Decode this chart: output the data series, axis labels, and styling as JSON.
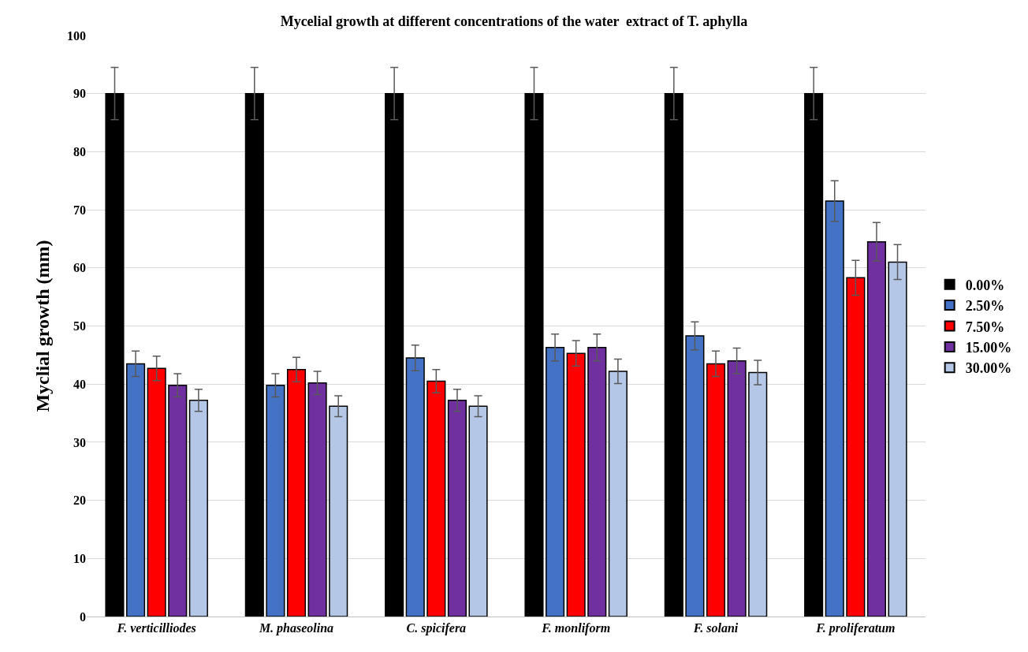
{
  "chart_data": {
    "type": "bar",
    "title": "Mycelial growth at different concentrations of the water  extract of T. aphylla",
    "ylabel": "Myclial growth (mm)",
    "categories": [
      "F. verticilliodes",
      "M. phaseolina",
      "C. spicifera",
      "F. monliform",
      "F. solani",
      "F. proliferatum"
    ],
    "series": [
      {
        "name": "0.00%",
        "color": "#000000",
        "values": [
          90,
          90,
          90,
          90,
          90,
          90
        ],
        "errors": [
          4.5,
          4.5,
          4.5,
          4.5,
          4.5,
          4.5
        ]
      },
      {
        "name": "2.50%",
        "color": "#4472c4",
        "values": [
          43.5,
          39.8,
          44.5,
          46.3,
          48.3,
          71.5
        ],
        "errors": [
          2.2,
          2,
          2.2,
          2.3,
          2.4,
          3.5
        ]
      },
      {
        "name": "7.50%",
        "color": "#ff0000",
        "values": [
          42.7,
          42.5,
          40.5,
          45.3,
          43.5,
          58.3
        ],
        "errors": [
          2.1,
          2.1,
          2,
          2.2,
          2.2,
          3
        ]
      },
      {
        "name": "15.00%",
        "color": "#7030a0",
        "values": [
          39.8,
          40.2,
          37.2,
          46.3,
          44,
          64.5
        ],
        "errors": [
          2,
          2,
          1.9,
          2.3,
          2.2,
          3.3
        ]
      },
      {
        "name": "30.00%",
        "color": "#b4c7e7",
        "values": [
          37.2,
          36.2,
          36.2,
          42.2,
          42,
          61
        ],
        "errors": [
          1.9,
          1.8,
          1.8,
          2.1,
          2.1,
          3
        ]
      }
    ],
    "ylim": [
      0,
      100
    ],
    "yticks": [
      0,
      10,
      20,
      30,
      40,
      50,
      60,
      70,
      80,
      90,
      100
    ],
    "grid": "y",
    "legend": "right"
  }
}
